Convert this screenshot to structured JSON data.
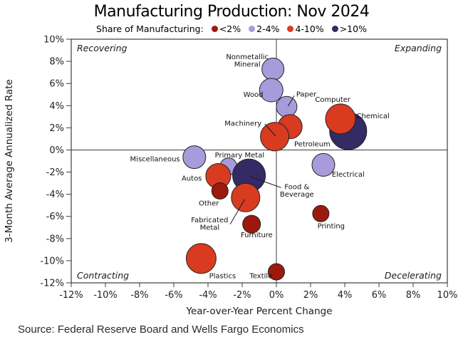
{
  "chart_data": {
    "type": "scatter",
    "title": "Manufacturing Production: Nov 2024",
    "legend_title": "Share of Manufacturing:",
    "legend_position": "top",
    "legend": [
      {
        "label": "<2%",
        "color": "#9c190d"
      },
      {
        "label": "2-4%",
        "color": "#a79bdb"
      },
      {
        "label": "4-10%",
        "color": "#d93b20"
      },
      {
        "label": ">10%",
        "color": "#342a64"
      }
    ],
    "xlabel": "Year-over-Year Percent Change",
    "ylabel": "3-Month Average Annualized Rate",
    "xlim": [
      -12,
      10
    ],
    "ylim": [
      -12,
      10
    ],
    "x_ticks": [
      "-12%",
      "-10%",
      "-8%",
      "-6%",
      "-4%",
      "-2%",
      "0%",
      "2%",
      "4%",
      "6%",
      "8%",
      "10%"
    ],
    "y_ticks": [
      "10%",
      "8%",
      "6%",
      "4%",
      "2%",
      "0%",
      "-2%",
      "-4%",
      "-6%",
      "-8%",
      "-10%",
      "-12%"
    ],
    "grid": false,
    "quadrant_lines": {
      "x": 0,
      "y": 0
    },
    "quadrant_labels": {
      "top_left": "Recovering",
      "top_right": "Expanding",
      "bottom_left": "Contracting",
      "bottom_right": "Decelerating"
    },
    "points": [
      {
        "name": "Nonmetallic Mineral",
        "label": "Nonmetallic\nMineral",
        "share": "2-4%",
        "x": -0.2,
        "y": 7.3,
        "r": 15.5,
        "label_x": -1.7,
        "label_y": 8.1
      },
      {
        "name": "Wood",
        "label": "Wood",
        "share": "2-4%",
        "x": -0.3,
        "y": 5.4,
        "r": 16.5,
        "label_x": -1.35,
        "label_y": 5.0
      },
      {
        "name": "Paper",
        "label": "Paper",
        "share": "2-4%",
        "x": 0.6,
        "y": 3.9,
        "r": 14.5,
        "label_x": 1.75,
        "label_y": 5.05,
        "leader": [
          1.05,
          4.9,
          0.68,
          3.95
        ]
      },
      {
        "name": "Chemical",
        "label": "Chemical",
        "share": ">10%",
        "x": 4.2,
        "y": 1.7,
        "r": 26,
        "label_x": 5.65,
        "label_y": 3.1
      },
      {
        "name": "Computer",
        "label": "Computer",
        "share": "4-10%",
        "x": 3.75,
        "y": 2.8,
        "r": 21,
        "label_x": 3.3,
        "label_y": 4.55
      },
      {
        "name": "Petroleum",
        "label": "Petroleum",
        "share": "4-10%",
        "x": 0.8,
        "y": 2.1,
        "r": 17,
        "label_x": 2.1,
        "label_y": 0.55
      },
      {
        "name": "Machinery",
        "label": "Machinery",
        "share": "4-10%",
        "x": -0.1,
        "y": 1.2,
        "r": 20,
        "label_x": -1.95,
        "label_y": 2.4,
        "leader": [
          -0.68,
          2.35,
          -0.05,
          1.25
        ]
      },
      {
        "name": "Miscellaneous",
        "label": "Miscellaneous",
        "share": "2-4%",
        "x": -4.8,
        "y": -0.65,
        "r": 16,
        "label_x": -7.1,
        "label_y": -0.8
      },
      {
        "name": "Primary Metal",
        "label": "Primary Metal",
        "share": "2-4%",
        "x": -2.8,
        "y": -1.5,
        "r": 12,
        "label_x": -2.15,
        "label_y": -0.45
      },
      {
        "name": "Autos",
        "label": "Autos",
        "share": "4-10%",
        "x": -3.4,
        "y": -2.35,
        "r": 17.5,
        "label_x": -4.95,
        "label_y": -2.55
      },
      {
        "name": "Food & Beverage",
        "label": "Food &\nBeverage",
        "share": ">10%",
        "x": -1.6,
        "y": -2.3,
        "r": 23,
        "label_x": 1.2,
        "label_y": -3.65,
        "leader": [
          0.28,
          -3.4,
          -1.55,
          -2.4
        ]
      },
      {
        "name": "Other",
        "label": "Other",
        "share": "<2%",
        "x": -3.3,
        "y": -3.7,
        "r": 11.5,
        "label_x": -3.95,
        "label_y": -4.8
      },
      {
        "name": "Fabricated Metal",
        "label": "Fabricated\nMetal",
        "share": "4-10%",
        "x": -1.8,
        "y": -4.3,
        "r": 20,
        "label_x": -3.9,
        "label_y": -6.65,
        "leader": [
          -2.7,
          -6.7,
          -1.85,
          -4.45
        ]
      },
      {
        "name": "Electrical",
        "label": "Electrical",
        "share": "2-4%",
        "x": 2.75,
        "y": -1.35,
        "r": 16,
        "label_x": 4.2,
        "label_y": -2.2
      },
      {
        "name": "Furniture",
        "label": "Furniture",
        "share": "<2%",
        "x": -1.45,
        "y": -6.7,
        "r": 12.5,
        "label_x": -1.15,
        "label_y": -7.65
      },
      {
        "name": "Printing",
        "label": "Printing",
        "share": "<2%",
        "x": 2.6,
        "y": -5.75,
        "r": 11.5,
        "label_x": 3.2,
        "label_y": -6.85
      },
      {
        "name": "Plastics",
        "label": "Plastics",
        "share": "4-10%",
        "x": -4.4,
        "y": -9.8,
        "r": 21,
        "label_x": -3.15,
        "label_y": -11.35
      },
      {
        "name": "Textile",
        "label": "Textile",
        "share": "<2%",
        "x": 0.0,
        "y": -11.0,
        "r": 11.5,
        "label_x": -0.9,
        "label_y": -11.35
      }
    ],
    "source": "Source: Federal Reserve Board and Wells Fargo Economics"
  }
}
